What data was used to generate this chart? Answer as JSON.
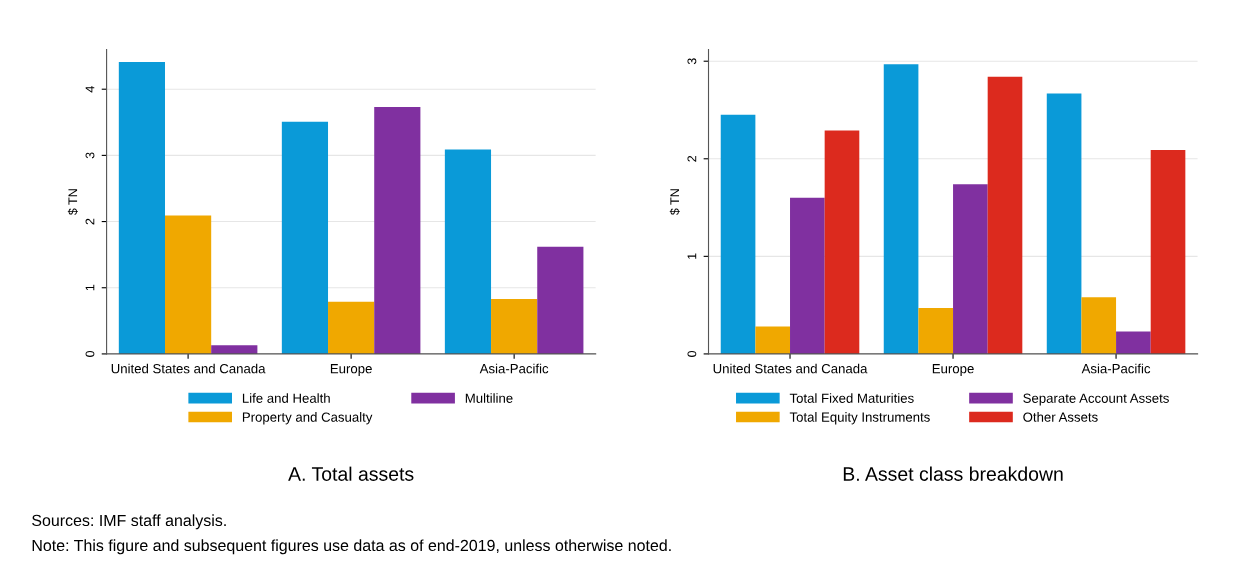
{
  "chart_data": [
    {
      "type": "bar",
      "title": "A. Total assets",
      "ylabel": "$ TN",
      "categories": [
        "United States and Canada",
        "Europe",
        "Asia-Pacific"
      ],
      "series": [
        {
          "name": "Life and Health",
          "color": "#0a9ad8",
          "values": [
            4.41,
            3.51,
            3.09
          ]
        },
        {
          "name": "Property and Casualty",
          "color": "#f0a800",
          "values": [
            2.09,
            0.79,
            0.83
          ]
        },
        {
          "name": "Multiline",
          "color": "#8030a0",
          "values": [
            0.13,
            3.73,
            1.62
          ]
        }
      ],
      "ylim": [
        0,
        4.6
      ],
      "yticks": [
        0,
        1,
        2,
        3,
        4
      ],
      "grid": "y",
      "legend": "bottom",
      "annotations": [
        "Sources: IMF staff analysis.",
        "Note: This figure and subsequent figures use data as of end-2019, unless otherwise noted."
      ]
    },
    {
      "type": "bar",
      "title": "B. Asset class breakdown",
      "ylabel": "$ TN",
      "categories": [
        "United States and Canada",
        "Europe",
        "Asia-Pacific"
      ],
      "series": [
        {
          "name": "Total Fixed Maturities",
          "color": "#0a9ad8",
          "values": [
            2.45,
            2.97,
            2.67
          ]
        },
        {
          "name": "Total Equity Instruments",
          "color": "#f0a800",
          "values": [
            0.28,
            0.47,
            0.58
          ]
        },
        {
          "name": "Separate Account Assets",
          "color": "#8030a0",
          "values": [
            1.6,
            1.74,
            0.23
          ]
        },
        {
          "name": "Other Assets",
          "color": "#dc2a1e",
          "values": [
            2.29,
            2.84,
            2.09
          ]
        }
      ],
      "ylim": [
        0,
        3.12
      ],
      "yticks": [
        0,
        1,
        2,
        3
      ],
      "grid": "y",
      "legend": "bottom"
    }
  ]
}
